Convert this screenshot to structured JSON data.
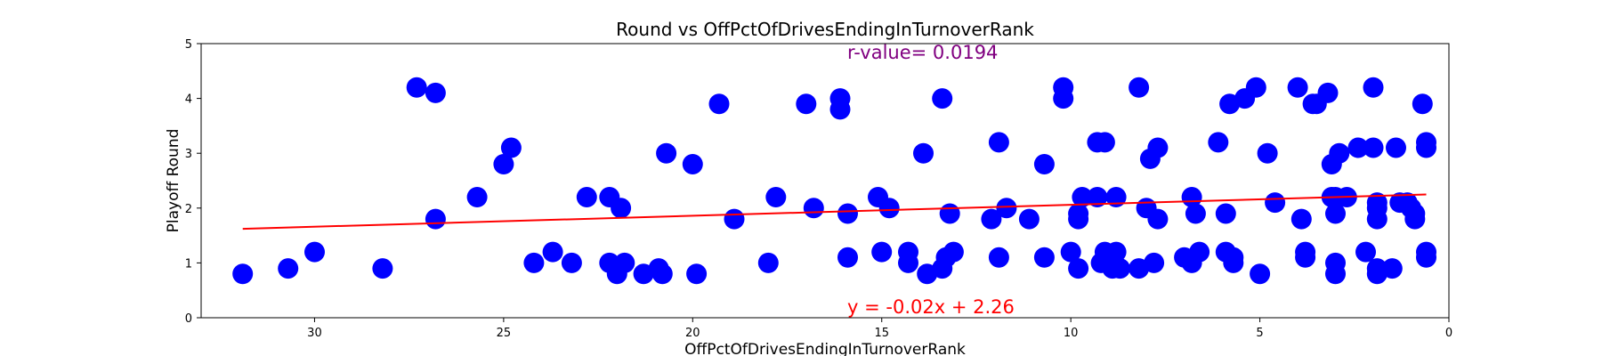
{
  "chart_data": {
    "type": "scatter",
    "title": "Round vs OffPctOfDrivesEndingInTurnoverRank",
    "xlabel": "OffPctOfDrivesEndingInTurnoverRank",
    "ylabel": "Playoff Round",
    "xlim": [
      33,
      0
    ],
    "ylim": [
      0,
      5
    ],
    "x_ticks": [
      30,
      25,
      20,
      15,
      10,
      5,
      0
    ],
    "y_ticks": [
      0,
      1,
      2,
      3,
      4,
      5
    ],
    "grid": false,
    "marker_color": "#0000ff",
    "line_color": "#ff0000",
    "r_color": "#800080",
    "points": [
      [
        31.9,
        0.8
      ],
      [
        30.7,
        0.9
      ],
      [
        30.0,
        1.2
      ],
      [
        28.2,
        0.9
      ],
      [
        27.3,
        4.2
      ],
      [
        26.8,
        4.1
      ],
      [
        26.8,
        1.8
      ],
      [
        25.7,
        2.2
      ],
      [
        25.0,
        2.8
      ],
      [
        24.8,
        3.1
      ],
      [
        24.2,
        1.0
      ],
      [
        23.7,
        1.2
      ],
      [
        23.2,
        1.0
      ],
      [
        22.8,
        2.2
      ],
      [
        22.2,
        2.2
      ],
      [
        22.2,
        1.0
      ],
      [
        22.0,
        0.8
      ],
      [
        21.9,
        2.0
      ],
      [
        21.8,
        1.0
      ],
      [
        21.3,
        0.8
      ],
      [
        20.9,
        0.9
      ],
      [
        20.8,
        0.8
      ],
      [
        20.7,
        3.0
      ],
      [
        20.0,
        2.8
      ],
      [
        19.9,
        0.8
      ],
      [
        19.3,
        3.9
      ],
      [
        18.9,
        1.8
      ],
      [
        18.0,
        1.0
      ],
      [
        17.8,
        2.2
      ],
      [
        17.0,
        3.9
      ],
      [
        16.8,
        2.0
      ],
      [
        16.1,
        4.0
      ],
      [
        16.1,
        3.8
      ],
      [
        15.9,
        1.1
      ],
      [
        15.9,
        1.9
      ],
      [
        15.1,
        2.2
      ],
      [
        15.0,
        1.2
      ],
      [
        14.8,
        2.0
      ],
      [
        14.3,
        1.2
      ],
      [
        14.3,
        1.0
      ],
      [
        13.9,
        3.0
      ],
      [
        13.8,
        0.8
      ],
      [
        13.4,
        4.0
      ],
      [
        13.4,
        0.9
      ],
      [
        13.3,
        1.1
      ],
      [
        13.2,
        1.9
      ],
      [
        13.1,
        1.2
      ],
      [
        12.1,
        1.8
      ],
      [
        11.9,
        3.2
      ],
      [
        11.9,
        1.1
      ],
      [
        11.7,
        2.0
      ],
      [
        11.1,
        1.8
      ],
      [
        10.7,
        2.8
      ],
      [
        10.7,
        1.1
      ],
      [
        10.2,
        4.2
      ],
      [
        10.2,
        4.0
      ],
      [
        10.0,
        1.2
      ],
      [
        9.8,
        1.9
      ],
      [
        9.8,
        1.8
      ],
      [
        9.8,
        0.9
      ],
      [
        9.7,
        2.2
      ],
      [
        9.3,
        2.2
      ],
      [
        9.3,
        3.2
      ],
      [
        9.2,
        1.0
      ],
      [
        9.1,
        3.2
      ],
      [
        9.1,
        1.2
      ],
      [
        8.9,
        0.9
      ],
      [
        8.8,
        2.2
      ],
      [
        8.8,
        1.2
      ],
      [
        8.7,
        0.9
      ],
      [
        8.2,
        4.2
      ],
      [
        8.2,
        0.9
      ],
      [
        8.0,
        2.0
      ],
      [
        7.9,
        2.9
      ],
      [
        7.8,
        1.0
      ],
      [
        7.7,
        3.1
      ],
      [
        7.7,
        1.8
      ],
      [
        7.0,
        1.1
      ],
      [
        6.8,
        2.2
      ],
      [
        6.8,
        1.0
      ],
      [
        6.7,
        1.9
      ],
      [
        6.6,
        1.2
      ],
      [
        6.1,
        3.2
      ],
      [
        5.9,
        1.9
      ],
      [
        5.9,
        1.2
      ],
      [
        5.8,
        3.9
      ],
      [
        5.7,
        1.1
      ],
      [
        5.7,
        1.0
      ],
      [
        5.4,
        4.0
      ],
      [
        5.1,
        4.2
      ],
      [
        5.0,
        0.8
      ],
      [
        4.8,
        3.0
      ],
      [
        4.6,
        2.1
      ],
      [
        4.0,
        4.2
      ],
      [
        3.9,
        1.8
      ],
      [
        3.8,
        1.2
      ],
      [
        3.8,
        1.1
      ],
      [
        3.6,
        3.9
      ],
      [
        3.5,
        3.9
      ],
      [
        3.2,
        4.1
      ],
      [
        3.1,
        2.8
      ],
      [
        3.1,
        2.2
      ],
      [
        3.0,
        2.2
      ],
      [
        3.0,
        1.9
      ],
      [
        3.0,
        1.0
      ],
      [
        3.0,
        0.8
      ],
      [
        2.9,
        3.0
      ],
      [
        2.7,
        2.2
      ],
      [
        2.4,
        3.1
      ],
      [
        2.2,
        1.2
      ],
      [
        2.0,
        3.1
      ],
      [
        2.0,
        4.2
      ],
      [
        1.9,
        2.1
      ],
      [
        1.9,
        2.0
      ],
      [
        1.9,
        1.8
      ],
      [
        1.9,
        0.9
      ],
      [
        1.9,
        0.8
      ],
      [
        1.5,
        0.9
      ],
      [
        1.4,
        3.1
      ],
      [
        1.3,
        2.1
      ],
      [
        1.1,
        2.1
      ],
      [
        1.0,
        2.0
      ],
      [
        0.9,
        1.8
      ],
      [
        0.9,
        1.9
      ],
      [
        0.7,
        3.9
      ],
      [
        0.6,
        3.2
      ],
      [
        0.6,
        3.1
      ],
      [
        0.6,
        1.2
      ],
      [
        0.6,
        1.1
      ]
    ],
    "regression": {
      "slope": -0.02,
      "intercept": 2.26,
      "x_range": [
        31.9,
        0.6
      ]
    },
    "annotations": {
      "equation": "y = -0.02x + 2.26",
      "r_value": "r-value= 0.0194"
    }
  }
}
